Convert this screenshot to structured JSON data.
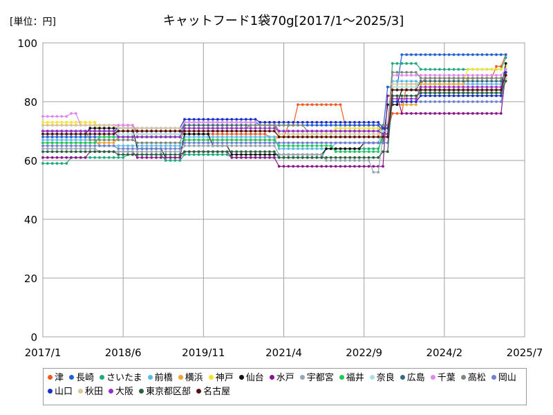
{
  "unit_label": "[単位：円]",
  "chart_data": {
    "type": "line",
    "title": "キャットフード1袋70g[2017/1～2025/3]",
    "x_ticks": [
      "2017/1",
      "2018/6",
      "2019/11",
      "2021/4",
      "2022/9",
      "2024/2",
      "2025/7"
    ],
    "y_ticks": [
      "0",
      "20",
      "40",
      "60",
      "80",
      "100"
    ],
    "ylim": [
      0,
      100
    ],
    "xlim": [
      "2017-01",
      "2025-07"
    ],
    "grid": true,
    "legend_position": "bottom",
    "x_dates": [
      "2017-01",
      "2017-02",
      "2017-03",
      "2017-04",
      "2017-05",
      "2017-06",
      "2017-07",
      "2017-08",
      "2017-09",
      "2017-10",
      "2017-11",
      "2017-12",
      "2018-01",
      "2018-02",
      "2018-03",
      "2018-04",
      "2018-05",
      "2018-06",
      "2018-07",
      "2018-08",
      "2018-09",
      "2018-10",
      "2018-11",
      "2018-12",
      "2019-01",
      "2019-02",
      "2019-03",
      "2019-04",
      "2019-05",
      "2019-06",
      "2019-07",
      "2019-08",
      "2019-09",
      "2019-10",
      "2019-11",
      "2019-12",
      "2020-01",
      "2020-02",
      "2020-03",
      "2020-04",
      "2020-05",
      "2020-06",
      "2020-07",
      "2020-08",
      "2020-09",
      "2020-10",
      "2020-11",
      "2020-12",
      "2021-01",
      "2021-02",
      "2021-03",
      "2021-04",
      "2021-05",
      "2021-06",
      "2021-07",
      "2021-08",
      "2021-09",
      "2021-10",
      "2021-11",
      "2021-12",
      "2022-01",
      "2022-02",
      "2022-03",
      "2022-04",
      "2022-05",
      "2022-06",
      "2022-07",
      "2022-08",
      "2022-09",
      "2022-10",
      "2022-11",
      "2022-12",
      "2023-01",
      "2023-02",
      "2023-03",
      "2023-04",
      "2023-05",
      "2023-06",
      "2023-07",
      "2023-08",
      "2023-09",
      "2023-10",
      "2023-11",
      "2023-12",
      "2024-01",
      "2024-02",
      "2024-03",
      "2024-04",
      "2024-05",
      "2024-06",
      "2024-07",
      "2024-08",
      "2024-09",
      "2024-10",
      "2024-11",
      "2024-12",
      "2025-01",
      "2025-02",
      "2025-03"
    ],
    "series": [
      {
        "name": "津",
        "color": "#f05a1e",
        "segments": [
          [
            0,
            72
          ],
          [
            20,
            69
          ],
          [
            48,
            68
          ],
          [
            52,
            72
          ],
          [
            54,
            79
          ],
          [
            64,
            72
          ],
          [
            72,
            70
          ],
          [
            74,
            76
          ],
          [
            77,
            86
          ],
          [
            81,
            88
          ],
          [
            96,
            92
          ],
          [
            98,
            96
          ]
        ]
      },
      {
        "name": "長崎",
        "color": "#1f5fd8",
        "segments": [
          [
            0,
            68
          ],
          [
            30,
            73
          ],
          [
            46,
            72
          ],
          [
            72,
            70
          ],
          [
            73,
            85
          ],
          [
            76,
            96
          ],
          [
            98,
            96
          ]
        ]
      },
      {
        "name": "さいたま",
        "color": "#1faa7a",
        "segments": [
          [
            0,
            59
          ],
          [
            6,
            61
          ],
          [
            18,
            62
          ],
          [
            26,
            60
          ],
          [
            30,
            62
          ],
          [
            40,
            61
          ],
          [
            60,
            64
          ],
          [
            72,
            68
          ],
          [
            74,
            93
          ],
          [
            80,
            91
          ],
          [
            98,
            95
          ]
        ]
      },
      {
        "name": "前橋",
        "color": "#5cb8ea",
        "segments": [
          [
            0,
            67
          ],
          [
            12,
            65
          ],
          [
            30,
            68
          ],
          [
            50,
            64
          ],
          [
            62,
            66
          ],
          [
            72,
            70
          ],
          [
            74,
            87
          ],
          [
            80,
            86
          ],
          [
            98,
            88
          ]
        ]
      },
      {
        "name": "横浜",
        "color": "#f0a52a",
        "segments": [
          [
            0,
            66
          ],
          [
            16,
            68
          ],
          [
            30,
            67
          ],
          [
            50,
            68
          ],
          [
            70,
            68
          ],
          [
            72,
            72
          ],
          [
            74,
            79
          ],
          [
            80,
            86
          ],
          [
            90,
            88
          ],
          [
            98,
            89
          ]
        ]
      },
      {
        "name": "神戸",
        "color": "#f2e42a",
        "segments": [
          [
            0,
            73
          ],
          [
            12,
            70
          ],
          [
            30,
            72
          ],
          [
            50,
            69
          ],
          [
            62,
            71
          ],
          [
            72,
            69
          ],
          [
            74,
            85
          ],
          [
            80,
            87
          ],
          [
            90,
            91
          ],
          [
            98,
            92
          ]
        ]
      },
      {
        "name": "仙台",
        "color": "#101010",
        "segments": [
          [
            0,
            69
          ],
          [
            10,
            71
          ],
          [
            20,
            64
          ],
          [
            26,
            61
          ],
          [
            30,
            69
          ],
          [
            36,
            65
          ],
          [
            40,
            62
          ],
          [
            60,
            64
          ],
          [
            68,
            66
          ],
          [
            72,
            66
          ],
          [
            73,
            79
          ],
          [
            76,
            84
          ],
          [
            80,
            84
          ],
          [
            98,
            93
          ]
        ]
      },
      {
        "name": "水戸",
        "color": "#8a168a",
        "segments": [
          [
            0,
            61
          ],
          [
            10,
            63
          ],
          [
            20,
            61
          ],
          [
            30,
            63
          ],
          [
            40,
            61
          ],
          [
            50,
            58
          ],
          [
            60,
            58
          ],
          [
            66,
            58
          ],
          [
            71,
            58
          ],
          [
            73,
            82
          ],
          [
            76,
            76
          ],
          [
            80,
            76
          ],
          [
            90,
            76
          ],
          [
            98,
            90
          ]
        ]
      },
      {
        "name": "宇都宮",
        "color": "#98a4b0",
        "segments": [
          [
            0,
            64
          ],
          [
            12,
            63
          ],
          [
            30,
            65
          ],
          [
            50,
            62
          ],
          [
            60,
            60
          ],
          [
            70,
            56
          ],
          [
            72,
            68
          ],
          [
            74,
            84
          ],
          [
            80,
            83
          ],
          [
            98,
            88
          ]
        ]
      },
      {
        "name": "福井",
        "color": "#1ec85a",
        "segments": [
          [
            0,
            66
          ],
          [
            12,
            68
          ],
          [
            30,
            67
          ],
          [
            50,
            65
          ],
          [
            62,
            63
          ],
          [
            72,
            70
          ],
          [
            74,
            84
          ],
          [
            80,
            83
          ],
          [
            98,
            90
          ]
        ]
      },
      {
        "name": "奈良",
        "color": "#a8e0e8",
        "segments": [
          [
            0,
            69
          ],
          [
            16,
            69
          ],
          [
            30,
            70
          ],
          [
            50,
            70
          ],
          [
            72,
            70
          ],
          [
            74,
            85
          ],
          [
            80,
            87
          ],
          [
            98,
            90
          ]
        ]
      },
      {
        "name": "広島",
        "color": "#3a6a80",
        "segments": [
          [
            0,
            70
          ],
          [
            16,
            70
          ],
          [
            30,
            72
          ],
          [
            50,
            70
          ],
          [
            72,
            69
          ],
          [
            74,
            84
          ],
          [
            80,
            87
          ],
          [
            98,
            90
          ]
        ]
      },
      {
        "name": "千葉",
        "color": "#e088f0",
        "segments": [
          [
            0,
            75
          ],
          [
            6,
            76
          ],
          [
            8,
            72
          ],
          [
            20,
            70
          ],
          [
            30,
            73
          ],
          [
            50,
            70
          ],
          [
            72,
            69
          ],
          [
            74,
            89
          ],
          [
            80,
            89
          ],
          [
            98,
            91
          ]
        ]
      },
      {
        "name": "高松",
        "color": "#7a8a7a",
        "segments": [
          [
            0,
            70
          ],
          [
            10,
            67
          ],
          [
            20,
            66
          ],
          [
            30,
            71
          ],
          [
            44,
            72
          ],
          [
            56,
            70
          ],
          [
            66,
            70
          ],
          [
            72,
            72
          ],
          [
            74,
            90
          ],
          [
            80,
            88
          ],
          [
            98,
            89
          ]
        ]
      },
      {
        "name": "岡山",
        "color": "#7080d0",
        "segments": [
          [
            0,
            65
          ],
          [
            16,
            64
          ],
          [
            30,
            66
          ],
          [
            50,
            66
          ],
          [
            72,
            66
          ],
          [
            74,
            80
          ],
          [
            80,
            80
          ],
          [
            98,
            89
          ]
        ]
      },
      {
        "name": "山口",
        "color": "#1830c8",
        "segments": [
          [
            0,
            70
          ],
          [
            16,
            71
          ],
          [
            30,
            74
          ],
          [
            46,
            73
          ],
          [
            72,
            71
          ],
          [
            74,
            80
          ],
          [
            80,
            82
          ],
          [
            98,
            90
          ]
        ]
      },
      {
        "name": "秋田",
        "color": "#d8c898",
        "segments": [
          [
            0,
            72
          ],
          [
            16,
            71
          ],
          [
            30,
            70
          ],
          [
            50,
            69
          ],
          [
            72,
            68
          ],
          [
            74,
            86
          ],
          [
            80,
            84
          ],
          [
            98,
            88
          ]
        ]
      },
      {
        "name": "大阪",
        "color": "#9830c8",
        "segments": [
          [
            0,
            70
          ],
          [
            16,
            68
          ],
          [
            30,
            71
          ],
          [
            50,
            70
          ],
          [
            72,
            69
          ],
          [
            74,
            81
          ],
          [
            80,
            85
          ],
          [
            98,
            89
          ]
        ]
      },
      {
        "name": "東京都区部",
        "color": "#286040",
        "segments": [
          [
            0,
            63
          ],
          [
            16,
            62
          ],
          [
            30,
            63
          ],
          [
            50,
            61
          ],
          [
            72,
            63
          ],
          [
            74,
            82
          ],
          [
            80,
            83
          ],
          [
            98,
            87
          ]
        ]
      },
      {
        "name": "名古屋",
        "color": "#5a1010",
        "segments": [
          [
            0,
            69
          ],
          [
            16,
            70
          ],
          [
            30,
            70
          ],
          [
            50,
            68
          ],
          [
            72,
            68
          ],
          [
            74,
            84
          ],
          [
            80,
            84
          ],
          [
            98,
            89
          ]
        ]
      }
    ]
  }
}
